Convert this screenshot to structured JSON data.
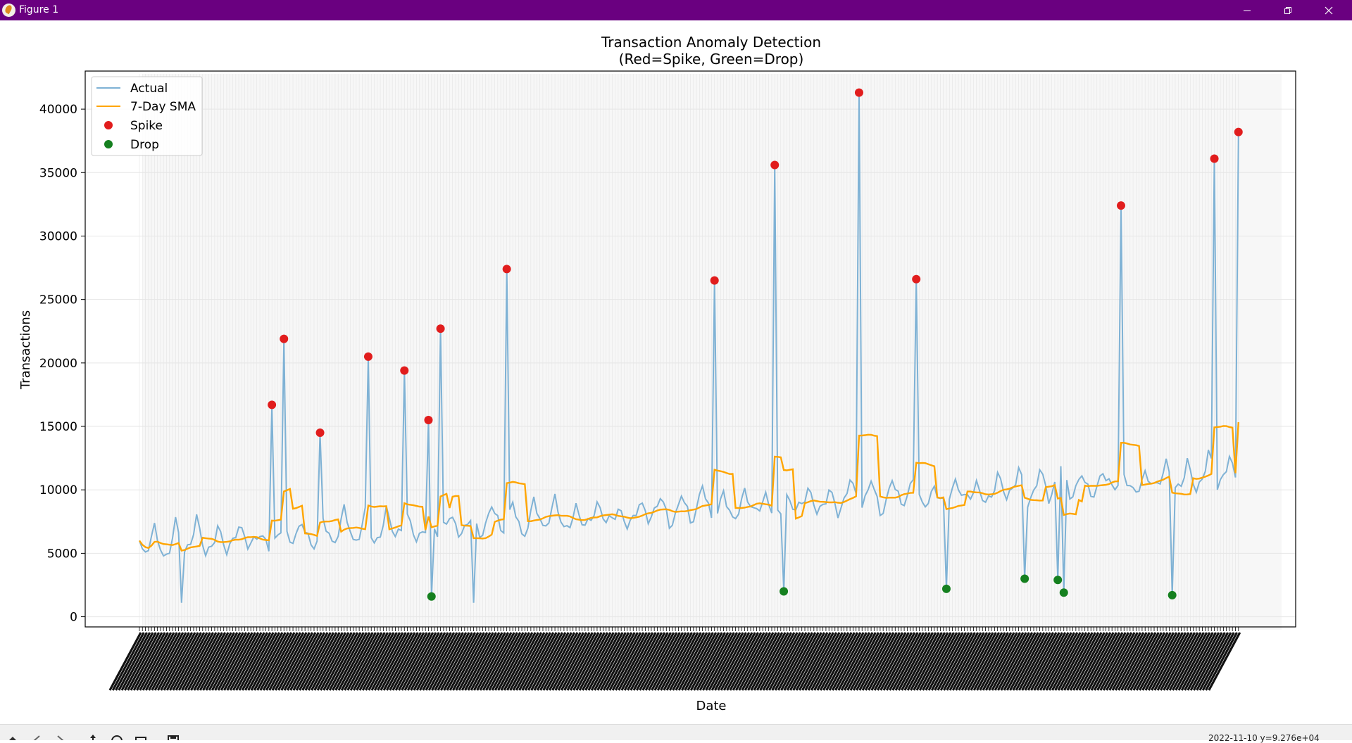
{
  "window": {
    "title": "Figure 1"
  },
  "toolbar": {
    "coords": "2022-11-10   y=9.276e+04"
  },
  "colors": {
    "actual": "#7fb2d5",
    "sma": "#ffa500",
    "spike": "#e11d1d",
    "drop": "#15801f",
    "titlebar": "#6a0080"
  },
  "chart_data": {
    "type": "line",
    "title": "Transaction Anomaly Detection",
    "subtitle": "(Red=Spike, Green=Drop)",
    "xlabel": "Date",
    "ylabel": "Transactions",
    "ylim": [
      -800,
      43000
    ],
    "yticks": [
      0,
      5000,
      10000,
      15000,
      20000,
      25000,
      30000,
      35000,
      40000
    ],
    "ytick_labels": [
      "0",
      "5000",
      "10000",
      "15000",
      "20000",
      "25000",
      "30000",
      "35000",
      "40000"
    ],
    "x_range": [
      1,
      366
    ],
    "xlim": [
      -17,
      385
    ],
    "grid": true,
    "legend_position": "top-left",
    "legend": [
      "Actual",
      "7-Day SMA",
      "Spike",
      "Drop"
    ],
    "series": [
      {
        "name": "Actual",
        "base_start": 5300,
        "base_end": 10900,
        "weekly_amplitude": 2100,
        "period_days": 7,
        "sample_values": [
          {
            "x": 1,
            "y": 6000
          },
          {
            "x": 15,
            "y": 1100
          },
          {
            "x": 112,
            "y": 1100
          }
        ]
      },
      {
        "name": "7-Day SMA",
        "sample_values": [
          {
            "x": 1,
            "y": 5700
          },
          {
            "x": 100,
            "y": 6400
          },
          {
            "x": 200,
            "y": 8800
          },
          {
            "x": 300,
            "y": 10600
          },
          {
            "x": 366,
            "y": 15500
          }
        ]
      },
      {
        "name": "Spike",
        "points": [
          {
            "x": 45,
            "y": 16700
          },
          {
            "x": 49,
            "y": 21900
          },
          {
            "x": 61,
            "y": 14500
          },
          {
            "x": 77,
            "y": 20500
          },
          {
            "x": 89,
            "y": 19400
          },
          {
            "x": 97,
            "y": 15500
          },
          {
            "x": 101,
            "y": 22700
          },
          {
            "x": 123,
            "y": 27400
          },
          {
            "x": 192,
            "y": 26500
          },
          {
            "x": 212,
            "y": 35600
          },
          {
            "x": 240,
            "y": 41300
          },
          {
            "x": 259,
            "y": 26600
          },
          {
            "x": 327,
            "y": 32400
          },
          {
            "x": 358,
            "y": 36100
          },
          {
            "x": 366,
            "y": 38200
          }
        ]
      },
      {
        "name": "Drop",
        "points": [
          {
            "x": 98,
            "y": 1600
          },
          {
            "x": 215,
            "y": 2000
          },
          {
            "x": 269,
            "y": 2200
          },
          {
            "x": 295,
            "y": 3000
          },
          {
            "x": 306,
            "y": 2900
          },
          {
            "x": 308,
            "y": 1900
          },
          {
            "x": 344,
            "y": 1700
          }
        ]
      }
    ]
  }
}
